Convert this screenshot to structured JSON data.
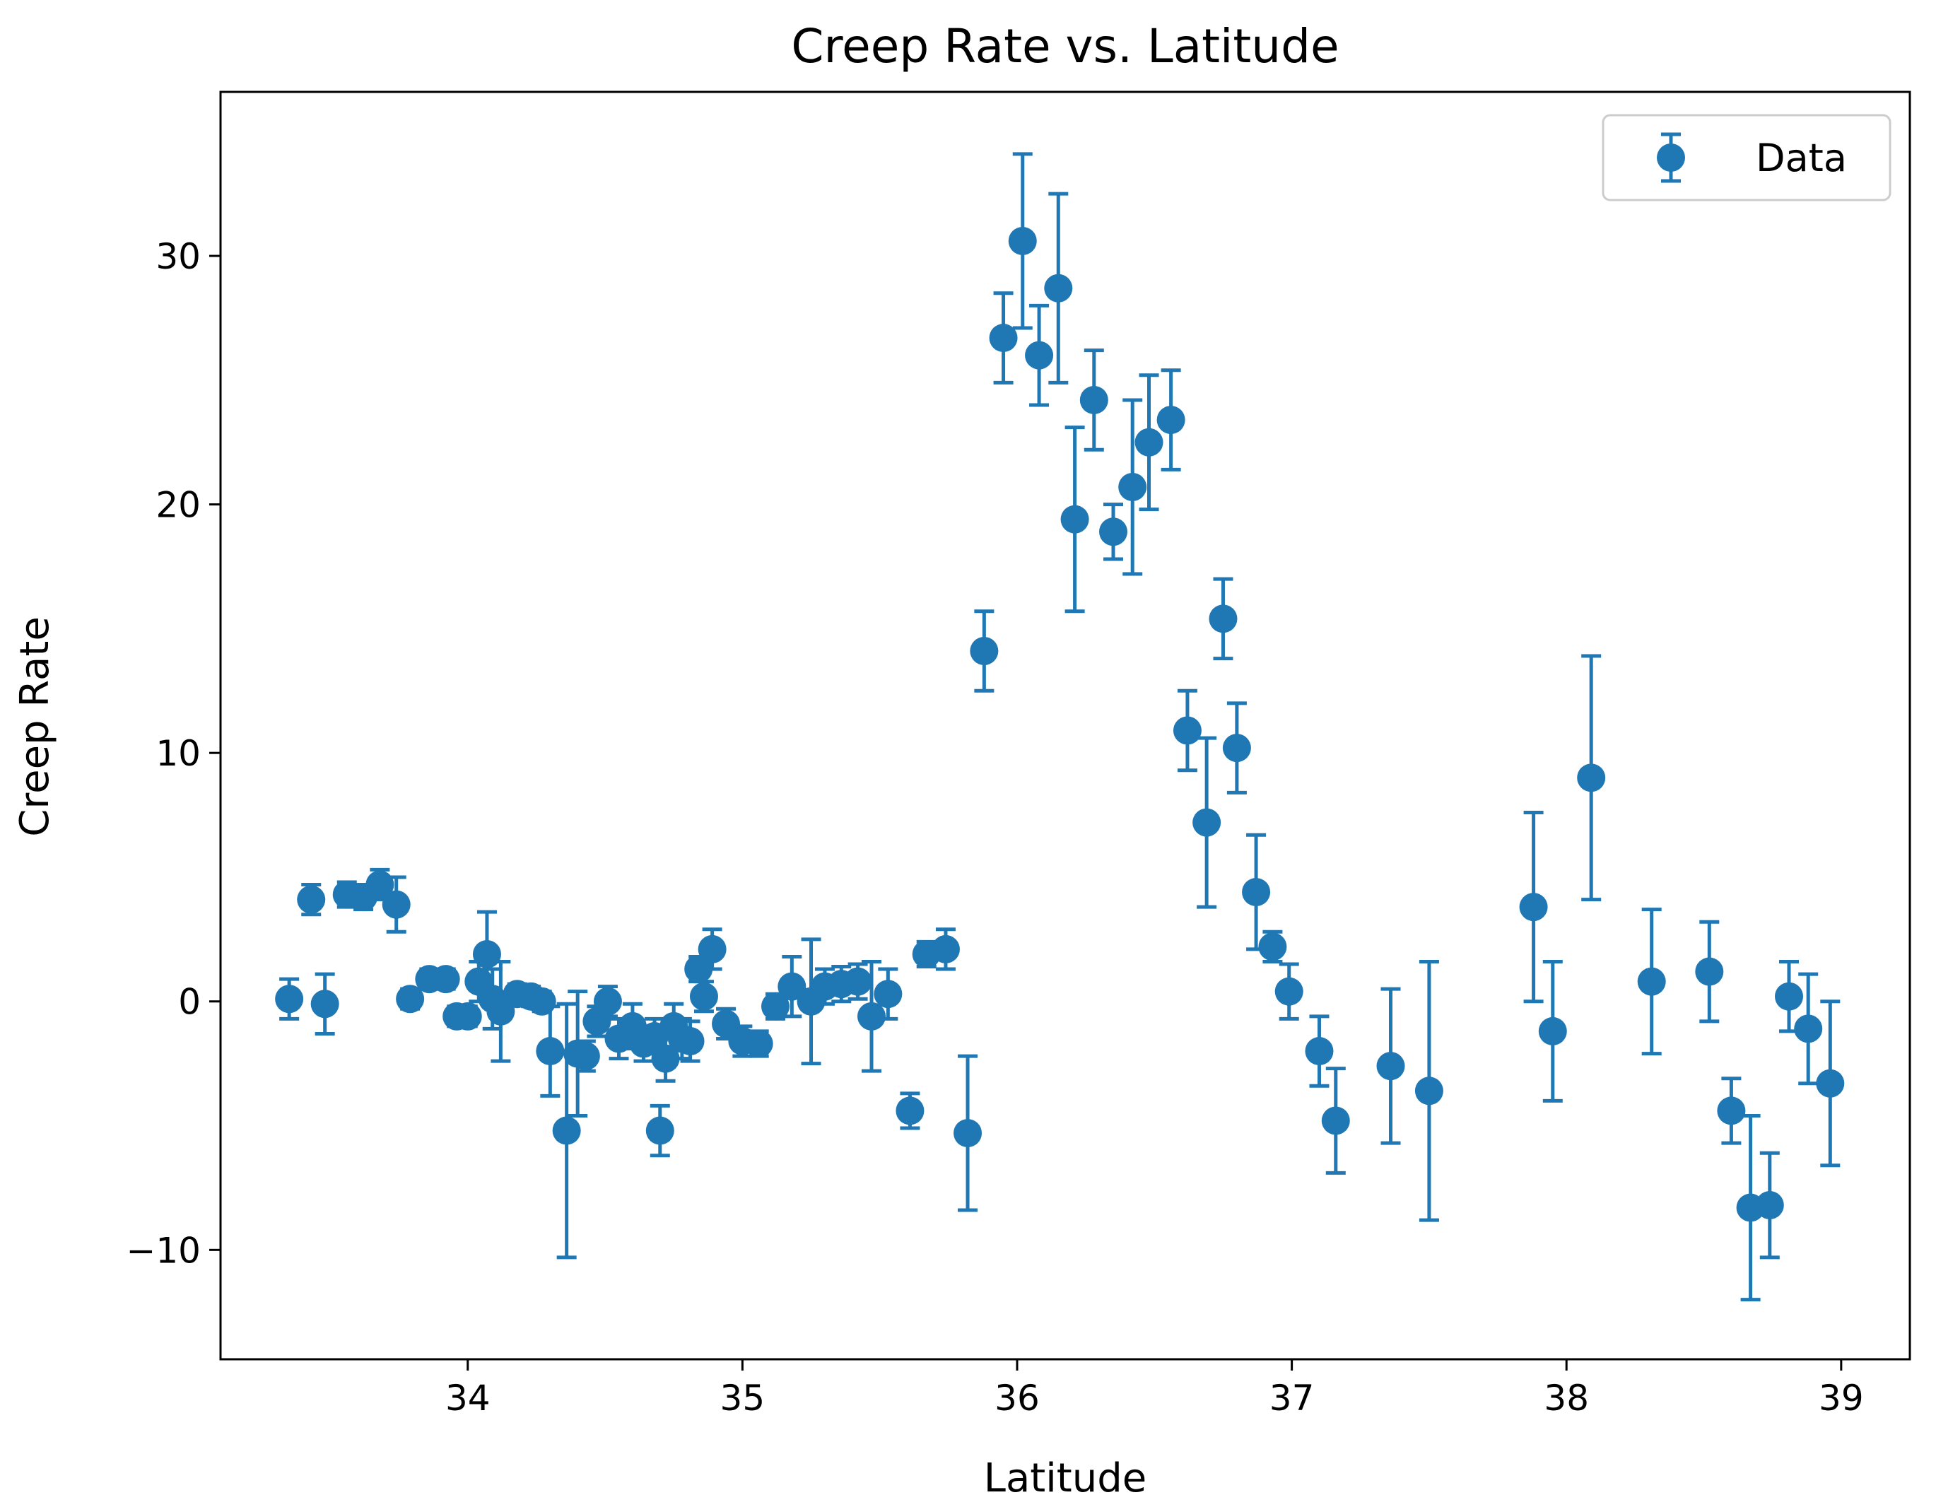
{
  "colors": {
    "series": "#1f77b4",
    "axis": "#000000",
    "legend_border": "#cccccc"
  },
  "chart_data": {
    "type": "scatter",
    "title": "Creep Rate vs. Latitude",
    "xlabel": "Latitude",
    "ylabel": "Creep Rate",
    "xlim": [
      33.1,
      39.25
    ],
    "ylim": [
      -14.4,
      36.6
    ],
    "xticks": [
      34,
      35,
      36,
      37,
      38,
      39
    ],
    "xtick_labels": [
      "34",
      "35",
      "36",
      "37",
      "38",
      "39"
    ],
    "yticks": [
      -10,
      0,
      10,
      20,
      30
    ],
    "ytick_labels": [
      "−10",
      "0",
      "10",
      "20",
      "30"
    ],
    "grid": false,
    "legend": {
      "position": "top-right",
      "entries": [
        "Data"
      ]
    },
    "series": [
      {
        "name": "Data",
        "marker": "circle",
        "error_bars": true,
        "points": [
          {
            "x": 33.35,
            "y": 0.1,
            "err": 0.8
          },
          {
            "x": 33.43,
            "y": 4.1,
            "err": 0.6
          },
          {
            "x": 33.48,
            "y": -0.1,
            "err": 1.2
          },
          {
            "x": 33.56,
            "y": 4.3,
            "err": 0.5
          },
          {
            "x": 33.62,
            "y": 4.2,
            "err": 0.5
          },
          {
            "x": 33.68,
            "y": 4.7,
            "err": 0.6
          },
          {
            "x": 33.74,
            "y": 3.9,
            "err": 1.1
          },
          {
            "x": 33.79,
            "y": 0.1,
            "err": 0.4
          },
          {
            "x": 33.86,
            "y": 0.9,
            "err": 0.4
          },
          {
            "x": 33.92,
            "y": 0.9,
            "err": 0.4
          },
          {
            "x": 33.96,
            "y": -0.6,
            "err": 0.4
          },
          {
            "x": 34.0,
            "y": -0.6,
            "err": 0.4
          },
          {
            "x": 34.04,
            "y": 0.8,
            "err": 0.8
          },
          {
            "x": 34.07,
            "y": 1.9,
            "err": 1.7
          },
          {
            "x": 34.09,
            "y": 0.1,
            "err": 1.2
          },
          {
            "x": 34.12,
            "y": -0.4,
            "err": 2.0
          },
          {
            "x": 34.18,
            "y": 0.3,
            "err": 0.4
          },
          {
            "x": 34.23,
            "y": 0.2,
            "err": 0.4
          },
          {
            "x": 34.27,
            "y": 0.0,
            "err": 0.4
          },
          {
            "x": 34.3,
            "y": -2.0,
            "err": 1.8
          },
          {
            "x": 34.36,
            "y": -5.2,
            "err": 5.1
          },
          {
            "x": 34.4,
            "y": -2.1,
            "err": 2.5
          },
          {
            "x": 34.43,
            "y": -2.2,
            "err": 0.6
          },
          {
            "x": 34.47,
            "y": -0.8,
            "err": 0.6
          },
          {
            "x": 34.51,
            "y": 0.0,
            "err": 0.6
          },
          {
            "x": 34.55,
            "y": -1.5,
            "err": 0.8
          },
          {
            "x": 34.6,
            "y": -1.0,
            "err": 0.9
          },
          {
            "x": 34.64,
            "y": -1.7,
            "err": 0.7
          },
          {
            "x": 34.68,
            "y": -1.4,
            "err": 0.7
          },
          {
            "x": 34.7,
            "y": -5.2,
            "err": 1.0
          },
          {
            "x": 34.72,
            "y": -2.3,
            "err": 0.9
          },
          {
            "x": 34.75,
            "y": -1.0,
            "err": 0.9
          },
          {
            "x": 34.78,
            "y": -1.5,
            "err": 0.8
          },
          {
            "x": 34.81,
            "y": -1.6,
            "err": 0.8
          },
          {
            "x": 34.84,
            "y": 1.3,
            "err": 0.5
          },
          {
            "x": 34.86,
            "y": 0.2,
            "err": 0.6
          },
          {
            "x": 34.89,
            "y": 2.1,
            "err": 0.8
          },
          {
            "x": 34.94,
            "y": -0.9,
            "err": 0.6
          },
          {
            "x": 35.0,
            "y": -1.6,
            "err": 0.6
          },
          {
            "x": 35.06,
            "y": -1.7,
            "err": 0.5
          },
          {
            "x": 35.12,
            "y": -0.2,
            "err": 0.5
          },
          {
            "x": 35.18,
            "y": 0.6,
            "err": 1.2
          },
          {
            "x": 35.25,
            "y": 0.0,
            "err": 2.5
          },
          {
            "x": 35.3,
            "y": 0.6,
            "err": 0.7
          },
          {
            "x": 35.36,
            "y": 0.7,
            "err": 0.7
          },
          {
            "x": 35.42,
            "y": 0.8,
            "err": 0.7
          },
          {
            "x": 35.47,
            "y": -0.6,
            "err": 2.2
          },
          {
            "x": 35.53,
            "y": 0.3,
            "err": 1.0
          },
          {
            "x": 35.61,
            "y": -4.4,
            "err": 0.7
          },
          {
            "x": 35.67,
            "y": 1.9,
            "err": 0.5
          },
          {
            "x": 35.74,
            "y": 2.1,
            "err": 0.8
          },
          {
            "x": 35.82,
            "y": -5.3,
            "err": 3.1
          },
          {
            "x": 35.88,
            "y": 14.1,
            "err": 1.6
          },
          {
            "x": 35.95,
            "y": 26.7,
            "err": 1.8
          },
          {
            "x": 36.02,
            "y": 30.6,
            "err": 3.5
          },
          {
            "x": 36.08,
            "y": 26.0,
            "err": 2.0
          },
          {
            "x": 36.15,
            "y": 28.7,
            "err": 3.8
          },
          {
            "x": 36.21,
            "y": 19.4,
            "err": 3.7
          },
          {
            "x": 36.28,
            "y": 24.2,
            "err": 2.0
          },
          {
            "x": 36.35,
            "y": 18.9,
            "err": 1.1
          },
          {
            "x": 36.42,
            "y": 20.7,
            "err": 3.5
          },
          {
            "x": 36.48,
            "y": 22.5,
            "err": 2.7
          },
          {
            "x": 36.56,
            "y": 23.4,
            "err": 2.0
          },
          {
            "x": 36.62,
            "y": 10.9,
            "err": 1.6
          },
          {
            "x": 36.69,
            "y": 7.2,
            "err": 3.4
          },
          {
            "x": 36.75,
            "y": 15.4,
            "err": 1.6
          },
          {
            "x": 36.8,
            "y": 10.2,
            "err": 1.8
          },
          {
            "x": 36.87,
            "y": 4.4,
            "err": 2.3
          },
          {
            "x": 36.93,
            "y": 2.2,
            "err": 0.6
          },
          {
            "x": 36.99,
            "y": 0.4,
            "err": 1.1
          },
          {
            "x": 37.1,
            "y": -2.0,
            "err": 1.4
          },
          {
            "x": 37.16,
            "y": -4.8,
            "err": 2.1
          },
          {
            "x": 37.36,
            "y": -2.6,
            "err": 3.1
          },
          {
            "x": 37.5,
            "y": -3.6,
            "err": 5.2
          },
          {
            "x": 37.88,
            "y": 3.8,
            "err": 3.8
          },
          {
            "x": 37.95,
            "y": -1.2,
            "err": 2.8
          },
          {
            "x": 38.09,
            "y": 9.0,
            "err": 4.9
          },
          {
            "x": 38.31,
            "y": 0.8,
            "err": 2.9
          },
          {
            "x": 38.52,
            "y": 1.2,
            "err": 2.0
          },
          {
            "x": 38.6,
            "y": -4.4,
            "err": 1.3
          },
          {
            "x": 38.67,
            "y": -8.3,
            "err": 3.7
          },
          {
            "x": 38.74,
            "y": -8.2,
            "err": 2.1
          },
          {
            "x": 38.81,
            "y": 0.2,
            "err": 1.4
          },
          {
            "x": 38.88,
            "y": -1.1,
            "err": 2.2
          },
          {
            "x": 38.96,
            "y": -3.3,
            "err": 3.3
          }
        ]
      }
    ]
  }
}
